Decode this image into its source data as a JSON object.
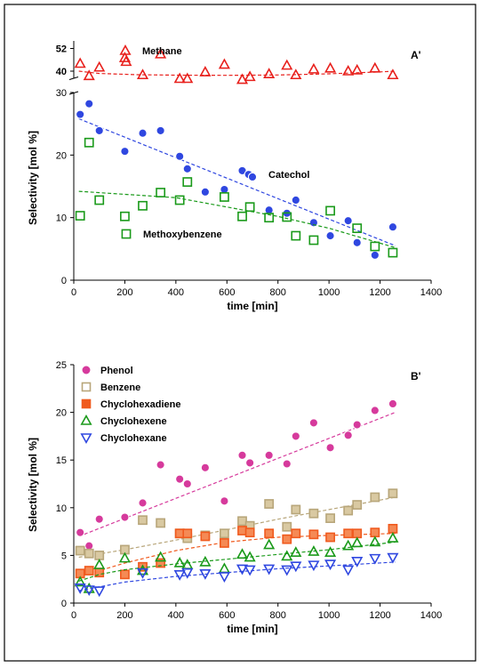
{
  "chart_data": [
    {
      "type": "scatter",
      "panel_label": "A'",
      "xlabel": "time [min]",
      "ylabel": "Selectivity [mol %]",
      "xlim": [
        0,
        1400
      ],
      "ylim": [
        0,
        30
      ],
      "xticks": [
        0,
        200,
        400,
        600,
        800,
        1000,
        1200,
        1400
      ],
      "yticks": [
        0,
        10,
        20,
        30
      ],
      "broken_axis": {
        "upper_ticks": [
          40,
          52
        ],
        "upper_range": [
          36,
          56
        ]
      },
      "trend_lines": "dashed",
      "series": [
        {
          "name": "Methane",
          "marker": "triangle-up",
          "color": "#e8201c",
          "axis": "upper",
          "x": [
            25,
            60,
            100,
            200,
            205,
            270,
            340,
            415,
            445,
            515,
            590,
            660,
            690,
            765,
            835,
            870,
            940,
            1005,
            1075,
            1110,
            1180,
            1250
          ],
          "y": [
            44,
            37.5,
            42,
            47,
            45,
            38,
            49,
            36,
            36,
            39.5,
            43.5,
            35.5,
            37,
            38.5,
            43,
            38,
            41,
            41.5,
            40,
            40.5,
            41.5,
            38
          ],
          "trend": {
            "x": [
              20,
              100,
              250,
              400,
              600,
              800,
              1000,
              1200,
              1260
            ],
            "y": [
              40,
              38.8,
              38.1,
              37.9,
              37.8,
              38,
              38.6,
              39.6,
              40
            ]
          }
        },
        {
          "name": "Catechol",
          "marker": "circle",
          "color": "#2f47e0",
          "axis": "lower",
          "x": [
            25,
            60,
            100,
            200,
            270,
            340,
            415,
            445,
            515,
            590,
            660,
            685,
            700,
            765,
            835,
            870,
            940,
            1005,
            1075,
            1110,
            1180,
            1250
          ],
          "y": [
            26.5,
            28.2,
            23.9,
            20.6,
            23.5,
            23.9,
            19.8,
            17.8,
            14.1,
            14.5,
            17.5,
            16.9,
            16.5,
            11.2,
            10.7,
            12.8,
            9.2,
            7.1,
            9.5,
            6.0,
            4.0,
            8.5
          ],
          "trend": {
            "x": [
              20,
              1260
            ],
            "y": [
              25.8,
              5.5
            ]
          }
        },
        {
          "name": "Methoxybenzene",
          "marker": "square",
          "color": "#1a9a1a",
          "axis": "lower",
          "x": [
            25,
            60,
            100,
            200,
            270,
            340,
            415,
            445,
            590,
            660,
            690,
            765,
            835,
            870,
            940,
            1005,
            1110,
            1180,
            1250
          ],
          "y": [
            10.3,
            22.0,
            12.8,
            10.2,
            11.9,
            14.0,
            12.8,
            15.7,
            13.3,
            10.2,
            11.7,
            10.0,
            10.1,
            7.1,
            6.4,
            11.1,
            8.3,
            5.4,
            4.4
          ],
          "trend": {
            "x": [
              20,
              400,
              800,
              1000,
              1260
            ],
            "y": [
              14.2,
              13.2,
              10.2,
              8.3,
              5.2
            ]
          }
        }
      ]
    },
    {
      "type": "scatter",
      "panel_label": "B'",
      "xlabel": "time [min]",
      "ylabel": "Selectivity [mol %]",
      "xlim": [
        0,
        1400
      ],
      "ylim": [
        0,
        25
      ],
      "xticks": [
        0,
        200,
        400,
        600,
        800,
        1000,
        1200,
        1400
      ],
      "yticks": [
        0,
        5,
        10,
        15,
        20,
        25
      ],
      "legend_position": "top-left",
      "trend_lines": "dashed",
      "series": [
        {
          "name": "Phenol",
          "marker": "circle",
          "color": "#d63a9c",
          "x": [
            25,
            60,
            100,
            200,
            270,
            340,
            415,
            445,
            515,
            590,
            660,
            690,
            765,
            835,
            870,
            940,
            1005,
            1075,
            1110,
            1180,
            1250
          ],
          "y": [
            7.4,
            6.0,
            8.8,
            9.0,
            10.5,
            14.5,
            13.0,
            12.5,
            14.2,
            10.7,
            15.5,
            14.7,
            15.5,
            14.6,
            17.5,
            18.9,
            16.3,
            17.6,
            18.7,
            20.2,
            20.9
          ],
          "trend": {
            "x": [
              20,
              1260
            ],
            "y": [
              7.0,
              20.0
            ]
          }
        },
        {
          "name": "Benzene",
          "marker": "square",
          "color": "#b8a67a",
          "x": [
            25,
            60,
            100,
            200,
            270,
            340,
            415,
            445,
            515,
            590,
            660,
            690,
            765,
            835,
            870,
            940,
            1005,
            1075,
            1110,
            1180,
            1250
          ],
          "y": [
            5.5,
            5.2,
            5.0,
            5.6,
            8.7,
            8.4,
            7.3,
            6.8,
            7.1,
            7.3,
            8.6,
            8.1,
            10.4,
            8.0,
            9.8,
            9.4,
            8.9,
            9.7,
            10.3,
            11.1,
            11.5
          ],
          "trend": {
            "x": [
              20,
              200,
              400,
              600,
              800,
              1000,
              1260
            ],
            "y": [
              4.8,
              5.6,
              6.6,
              7.7,
              8.8,
              9.8,
              11.1
            ]
          }
        },
        {
          "name": "Chyclohexadiene",
          "marker": "square",
          "color": "#f05a1e",
          "x": [
            25,
            60,
            100,
            200,
            270,
            340,
            415,
            445,
            515,
            590,
            660,
            690,
            765,
            835,
            870,
            940,
            1005,
            1075,
            1110,
            1180,
            1250
          ],
          "y": [
            3.1,
            3.4,
            3.2,
            3.0,
            3.8,
            4.2,
            7.3,
            7.3,
            7.0,
            6.3,
            7.6,
            7.4,
            7.3,
            6.7,
            7.3,
            7.2,
            6.9,
            7.3,
            7.3,
            7.4,
            7.8
          ],
          "trend": {
            "x": [
              20,
              100,
              200,
              400,
              600,
              800,
              1000,
              1260
            ],
            "y": [
              2.9,
              3.4,
              4.2,
              5.5,
              6.4,
              6.9,
              7.1,
              7.3
            ]
          }
        },
        {
          "name": "Chyclohexene",
          "marker": "triangle-up",
          "color": "#1a9a1a",
          "x": [
            25,
            60,
            100,
            200,
            270,
            340,
            415,
            445,
            515,
            590,
            660,
            690,
            765,
            835,
            870,
            940,
            1005,
            1075,
            1110,
            1180,
            1250
          ],
          "y": [
            2.2,
            1.5,
            4.0,
            4.7,
            3.4,
            4.8,
            4.2,
            4.0,
            4.3,
            3.6,
            5.1,
            4.8,
            6.1,
            4.9,
            5.3,
            5.4,
            5.3,
            6.0,
            6.3,
            6.4,
            6.8
          ],
          "trend": {
            "x": [
              20,
              100,
              200,
              400,
              600,
              800,
              1000,
              1260
            ],
            "y": [
              2.3,
              3.0,
              3.5,
              4.1,
              4.6,
              5.1,
              5.6,
              6.4
            ]
          }
        },
        {
          "name": "Chyclohexane",
          "marker": "triangle-down",
          "color": "#2f47e0",
          "x": [
            25,
            60,
            100,
            270,
            415,
            445,
            515,
            590,
            660,
            690,
            765,
            835,
            870,
            940,
            1005,
            1075,
            1110,
            1180,
            1250
          ],
          "y": [
            1.6,
            1.4,
            1.3,
            3.2,
            3.0,
            3.2,
            3.1,
            2.8,
            3.6,
            3.5,
            3.6,
            3.5,
            3.9,
            4.0,
            4.1,
            3.5,
            4.4,
            4.7,
            4.8
          ],
          "trend": {
            "x": [
              20,
              200,
              400,
              600,
              800,
              1000,
              1260
            ],
            "y": [
              1.3,
              2.2,
              2.8,
              3.2,
              3.6,
              3.9,
              4.3
            ]
          }
        }
      ]
    }
  ]
}
